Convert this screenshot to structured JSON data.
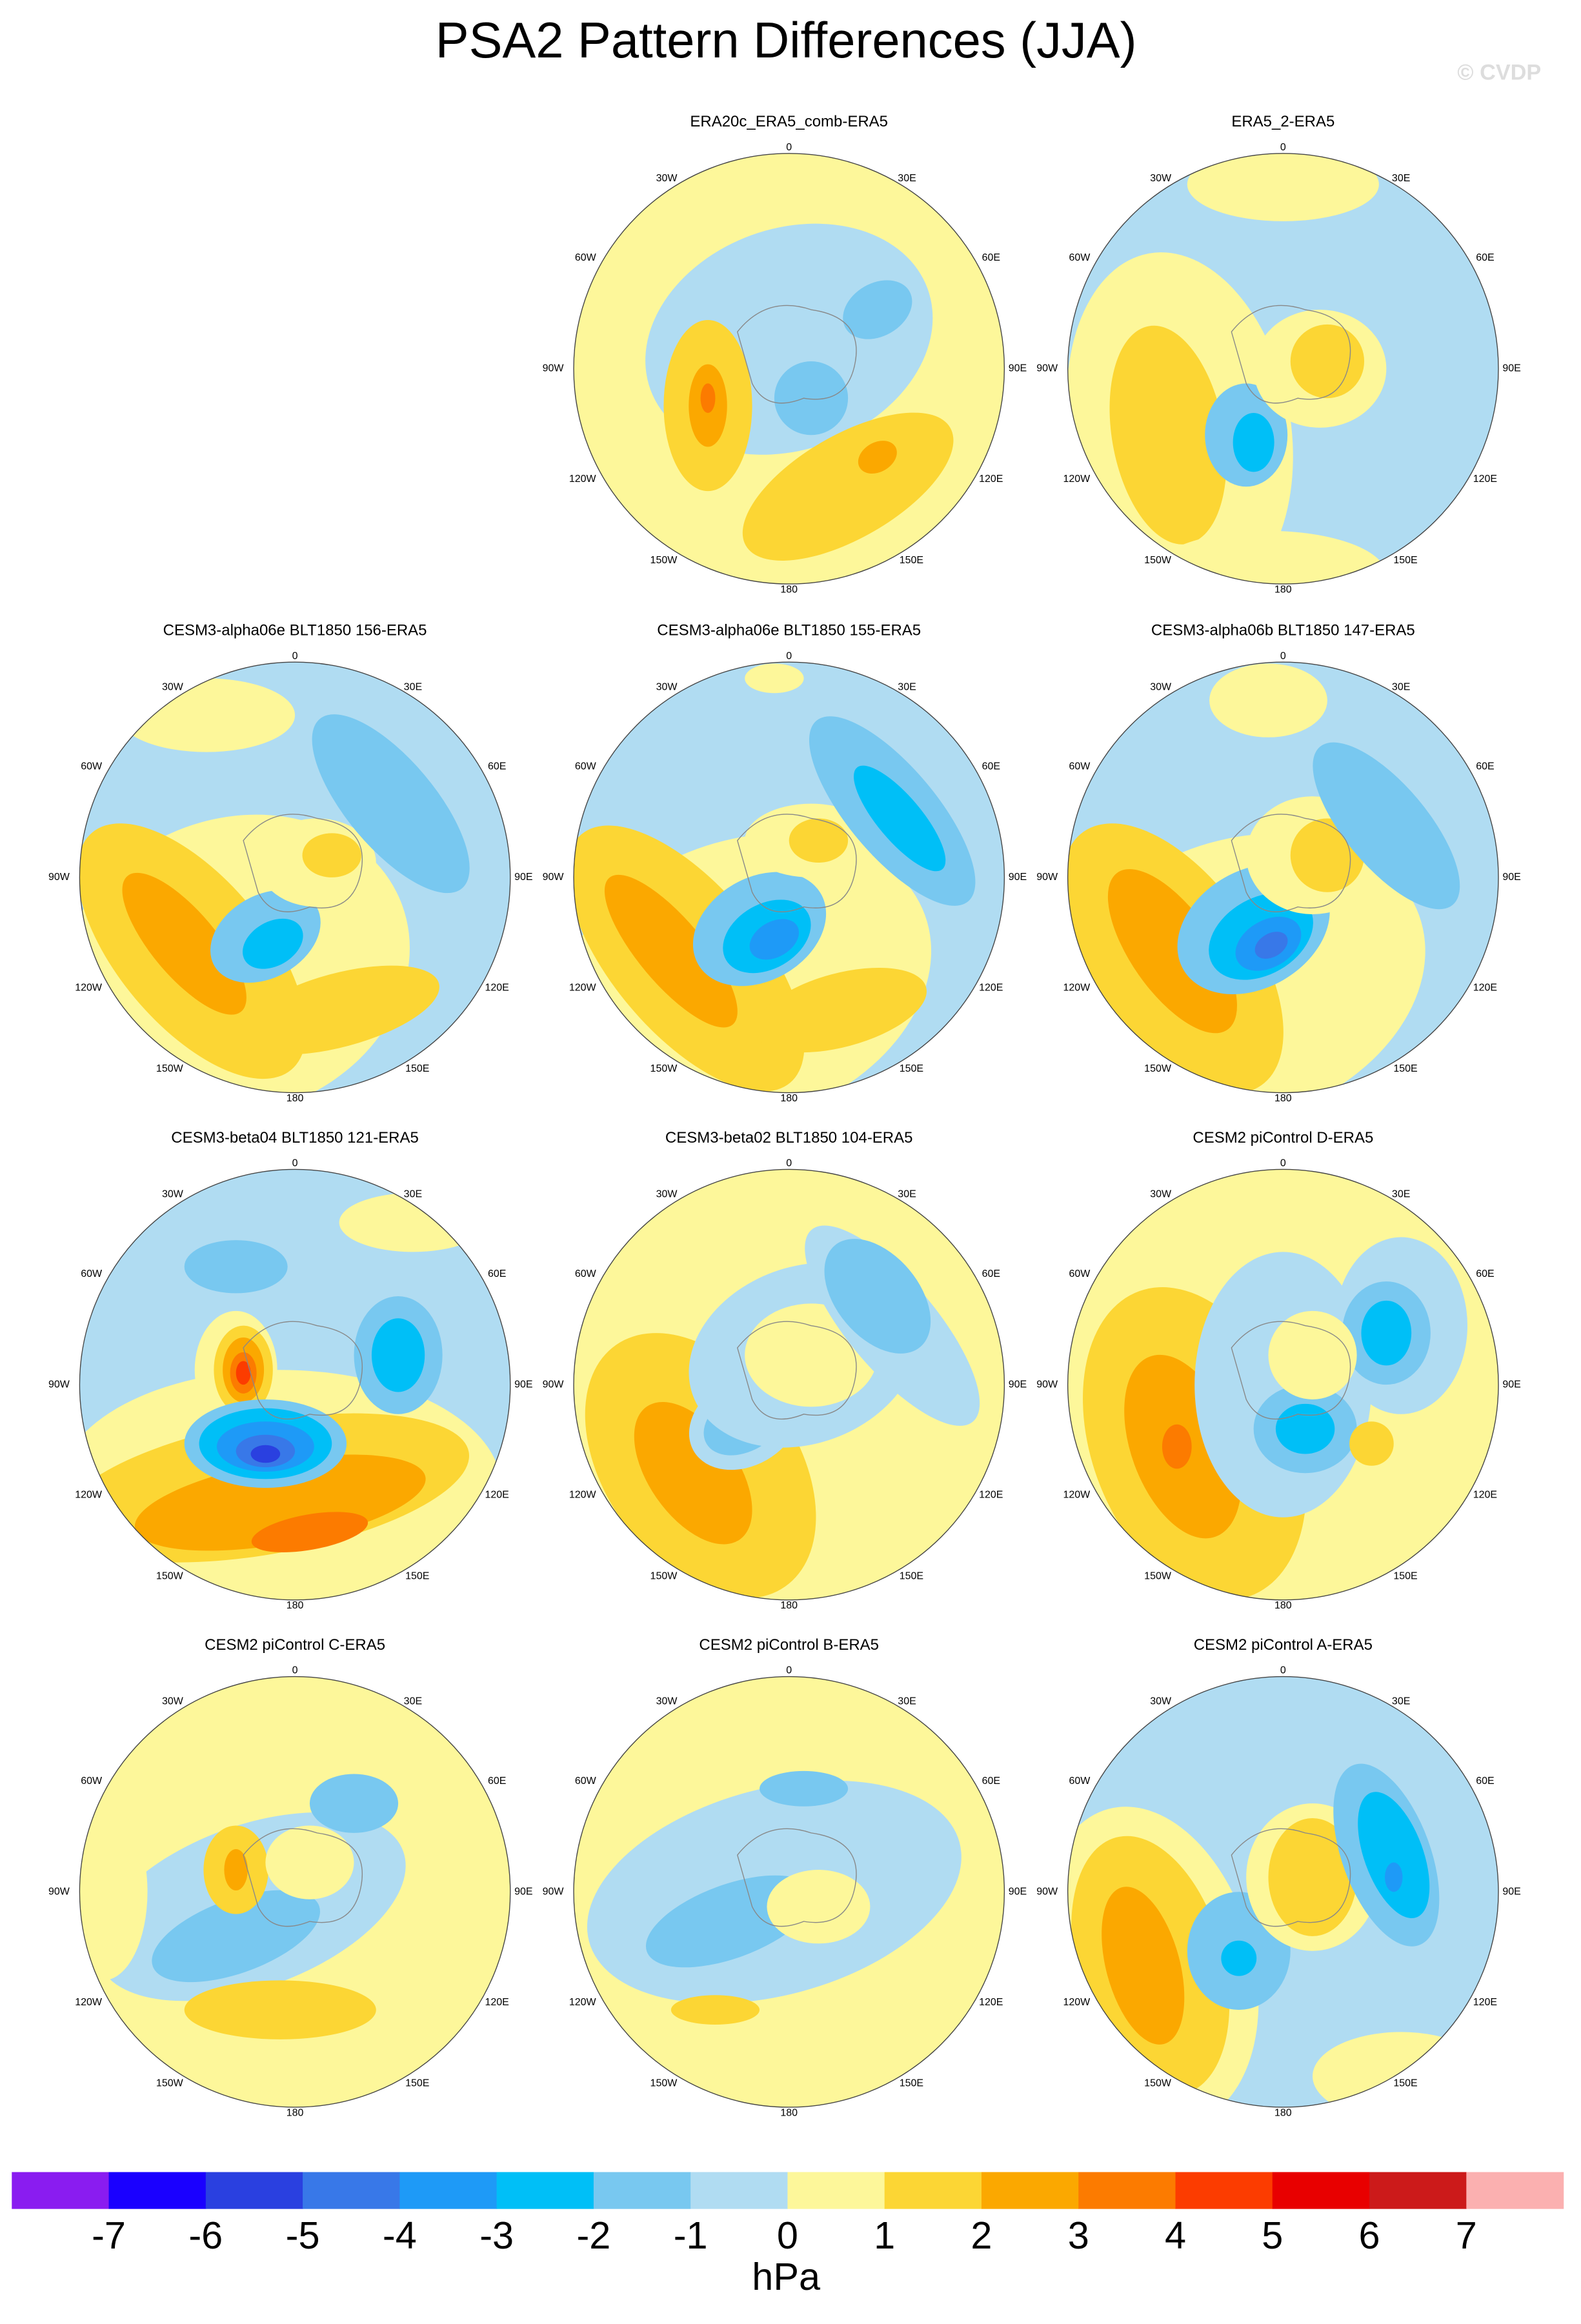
{
  "title": "PSA2 Pattern Differences (JJA)",
  "watermark": "© CVDP",
  "lon_labels": [
    "0",
    "30W",
    "30E",
    "60W",
    "60E",
    "90W",
    "90E",
    "120W",
    "120E",
    "150W",
    "150E",
    "180"
  ],
  "panels": [
    {
      "title": "ERA20c_ERA5_comb-ERA5"
    },
    {
      "title": "ERA5_2-ERA5"
    },
    {
      "title": "CESM3-alpha06e BLT1850 156-ERA5"
    },
    {
      "title": "CESM3-alpha06e BLT1850 155-ERA5"
    },
    {
      "title": "CESM3-alpha06b BLT1850 147-ERA5"
    },
    {
      "title": "CESM3-beta04 BLT1850 121-ERA5"
    },
    {
      "title": "CESM3-beta02 BLT1850 104-ERA5"
    },
    {
      "title": "CESM2 piControl D-ERA5"
    },
    {
      "title": "CESM2 piControl C-ERA5"
    },
    {
      "title": "CESM2 piControl B-ERA5"
    },
    {
      "title": "CESM2 piControl A-ERA5"
    }
  ],
  "colorbar": {
    "colors": [
      "#8a1cf0",
      "#1a00ff",
      "#2a40e0",
      "#3878e8",
      "#1e9af7",
      "#00bff7",
      "#78c8f0",
      "#b0dcf2",
      "#fdf79a",
      "#fcd634",
      "#fba800",
      "#fc7b00",
      "#fc3c00",
      "#e80000",
      "#cc1a1a",
      "#fbb0b0"
    ],
    "ticks": [
      -7,
      -6,
      -5,
      -4,
      -3,
      -2,
      -1,
      0,
      1,
      2,
      3,
      4,
      5,
      6,
      7
    ],
    "unit": "hPa"
  }
}
